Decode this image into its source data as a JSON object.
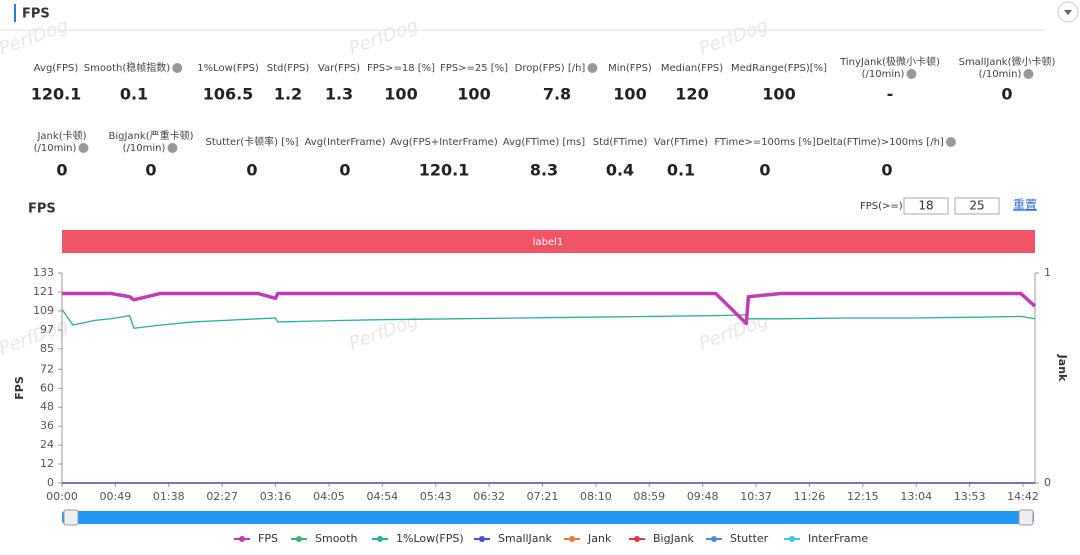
{
  "header": {
    "title": "FPS"
  },
  "watermark": "PerfDog",
  "metrics": {
    "row1": [
      {
        "label": [
          "Avg(FPS)"
        ],
        "value": 120.1
      },
      {
        "label": [
          "Smooth(稳帧指数)"
        ],
        "help": true,
        "value": 0.1
      },
      {
        "label": [
          "1%Low(FPS)"
        ],
        "value": 106.5
      },
      {
        "label": [
          "Std(FPS)"
        ],
        "value": 1.2
      },
      {
        "label": [
          "Var(FPS)"
        ],
        "value": 1.3
      },
      {
        "label": [
          "FPS>=18 [%]"
        ],
        "value": 100
      },
      {
        "label": [
          "FPS>=25 [%]"
        ],
        "value": 100
      },
      {
        "label": [
          "Drop(FPS) [/h]"
        ],
        "help": true,
        "value": 7.8
      },
      {
        "label": [
          "Min(FPS)"
        ],
        "value": 100
      },
      {
        "label": [
          "Median(FPS)"
        ],
        "value": 120
      },
      {
        "label": [
          "MedRange(FPS)[%]"
        ],
        "value": 100
      },
      {
        "label": [
          "TinyJank(极微小卡顿)",
          "(/10min)"
        ],
        "help": true,
        "value": "-"
      },
      {
        "label": [
          "SmallJank(微小卡顿)",
          "(/10min)"
        ],
        "help": true,
        "value": 0
      }
    ],
    "row2": [
      {
        "label": [
          "Jank(卡顿)",
          "(/10min)"
        ],
        "help": true,
        "value": 0
      },
      {
        "label": [
          "BigJank(严重卡顿)",
          "(/10min)"
        ],
        "help": true,
        "value": 0
      },
      {
        "label": [
          "Stutter(卡顿率) [%]"
        ],
        "value": 0
      },
      {
        "label": [
          "Avg(InterFrame)"
        ],
        "value": 0
      },
      {
        "label": [
          "Avg(FPS+InterFrame)"
        ],
        "value": 120.1
      },
      {
        "label": [
          "Avg(FTime) [ms]"
        ],
        "value": 8.3
      },
      {
        "label": [
          "Std(FTime)"
        ],
        "value": 0.4
      },
      {
        "label": [
          "Var(FTime)"
        ],
        "value": 0.1
      },
      {
        "label": [
          "FTime>=100ms [%]"
        ],
        "value": 0
      },
      {
        "label": [
          "Delta(FTime)>100ms [/h]"
        ],
        "help": true,
        "value": 0
      }
    ]
  },
  "controls": {
    "threshold_label": "FPS(>=)",
    "thresholds": [
      18,
      25
    ],
    "reset": "重置"
  },
  "chart_data": {
    "type": "line",
    "title": "FPS",
    "band_label": "label1",
    "y_label": "FPS",
    "y2_label": "Jank",
    "x": [
      0,
      10,
      30,
      45,
      62,
      66,
      90,
      120,
      150,
      180,
      196,
      198,
      230,
      260,
      300,
      360,
      420,
      480,
      540,
      600,
      628,
      630,
      660,
      720,
      780,
      840,
      880,
      893
    ],
    "xlim": [
      0,
      893
    ],
    "xticks": [
      {
        "value": 0,
        "label": "00:00"
      },
      {
        "value": 49,
        "label": "00:49"
      },
      {
        "value": 98,
        "label": "01:38"
      },
      {
        "value": 147,
        "label": "02:27"
      },
      {
        "value": 196,
        "label": "03:16"
      },
      {
        "value": 245,
        "label": "04:05"
      },
      {
        "value": 294,
        "label": "04:54"
      },
      {
        "value": 343,
        "label": "05:43"
      },
      {
        "value": 392,
        "label": "06:32"
      },
      {
        "value": 441,
        "label": "07:21"
      },
      {
        "value": 490,
        "label": "08:10"
      },
      {
        "value": 539,
        "label": "08:59"
      },
      {
        "value": 588,
        "label": "09:48"
      },
      {
        "value": 637,
        "label": "10:37"
      },
      {
        "value": 686,
        "label": "11:26"
      },
      {
        "value": 735,
        "label": "12:15"
      },
      {
        "value": 784,
        "label": "13:04"
      },
      {
        "value": 833,
        "label": "13:53"
      },
      {
        "value": 882,
        "label": "14:42"
      }
    ],
    "ylim": [
      0,
      133
    ],
    "yticks": [
      0,
      12,
      24,
      36,
      48,
      60,
      72,
      85,
      97,
      109,
      121,
      133
    ],
    "y2lim": [
      0,
      1
    ],
    "y2ticks": [
      0,
      1
    ],
    "grid": false,
    "series": [
      {
        "name": "FPS",
        "color": "#c23bb8",
        "values": [
          120,
          120,
          120,
          120,
          118,
          116,
          120,
          120,
          120,
          120,
          117,
          120,
          120,
          120,
          120,
          120,
          120,
          120,
          120,
          120,
          101,
          118,
          120,
          120,
          120,
          120,
          120,
          112
        ]
      },
      {
        "name": "Smooth",
        "color": "#3cb371",
        "values": [
          null,
          null,
          null,
          null,
          null,
          null,
          null,
          null,
          null,
          null,
          null,
          null,
          null,
          null,
          null,
          null,
          null,
          null,
          null,
          null,
          null,
          null,
          null,
          null,
          null,
          null,
          null,
          null
        ]
      },
      {
        "name": "1%Low(FPS)",
        "color": "#2aaea0",
        "values": [
          110,
          100,
          103,
          104,
          106,
          98,
          100,
          102,
          103,
          104,
          104.5,
          102,
          102.5,
          103,
          103.5,
          104,
          104.5,
          105,
          105.5,
          106,
          106.5,
          104,
          104,
          104.5,
          104.5,
          105,
          105.5,
          104
        ]
      },
      {
        "name": "SmallJank",
        "color": "#4b4fd6",
        "axis": "y2",
        "values": [
          0,
          0,
          0,
          0,
          0,
          0,
          0,
          0,
          0,
          0,
          0,
          0,
          0,
          0,
          0,
          0,
          0,
          0,
          0,
          0,
          0,
          0,
          0,
          0,
          0,
          0,
          0,
          0
        ]
      },
      {
        "name": "Jank",
        "color": "#f07a2a",
        "axis": "y2",
        "values": [
          0,
          0,
          0,
          0,
          0,
          0,
          0,
          0,
          0,
          0,
          0,
          0,
          0,
          0,
          0,
          0,
          0,
          0,
          0,
          0,
          0,
          0,
          0,
          0,
          0,
          0,
          0,
          0
        ]
      },
      {
        "name": "BigJank",
        "color": "#d9363e",
        "axis": "y2",
        "values": [
          0,
          0,
          0,
          0,
          0,
          0,
          0,
          0,
          0,
          0,
          0,
          0,
          0,
          0,
          0,
          0,
          0,
          0,
          0,
          0,
          0,
          0,
          0,
          0,
          0,
          0,
          0,
          0
        ]
      },
      {
        "name": "Stutter",
        "color": "#4a90e2",
        "axis": "y2",
        "values": [
          0,
          0,
          0,
          0,
          0,
          0,
          0,
          0,
          0,
          0,
          0,
          0,
          0,
          0,
          0,
          0,
          0,
          0,
          0,
          0,
          0,
          0,
          0,
          0,
          0,
          0,
          0,
          0
        ]
      },
      {
        "name": "InterFrame",
        "color": "#38c6e0",
        "values": [
          null,
          null,
          null,
          null,
          null,
          null,
          null,
          null,
          null,
          null,
          null,
          null,
          null,
          null,
          null,
          null,
          null,
          null,
          null,
          null,
          null,
          null,
          null,
          null,
          null,
          null,
          null,
          null
        ]
      }
    ]
  }
}
